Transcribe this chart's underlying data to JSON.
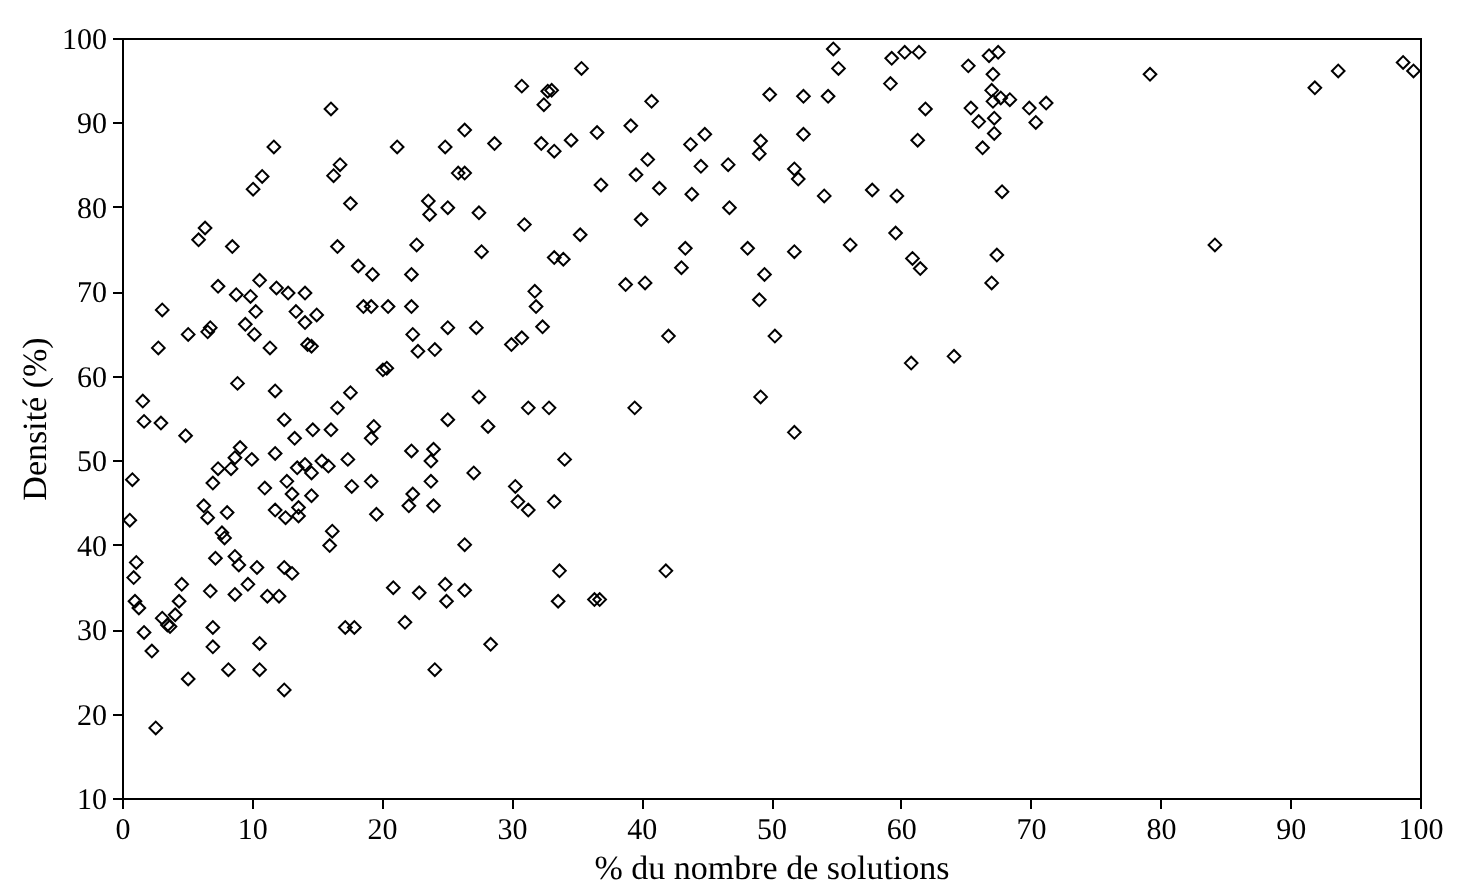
{
  "chart_data": {
    "type": "scatter",
    "xlabel": "% du nombre de solutions",
    "ylabel": "Densité (%)",
    "xlim": [
      0,
      100
    ],
    "ylim": [
      10,
      100
    ],
    "xticks": [
      0,
      10,
      20,
      30,
      40,
      50,
      60,
      70,
      80,
      90,
      100
    ],
    "yticks": [
      10,
      20,
      30,
      40,
      50,
      60,
      70,
      80,
      90,
      100
    ],
    "grid": false,
    "marker": "diamond",
    "series": [
      {
        "color": "#000000",
        "x": [
          16.1,
          11.7,
          21.2,
          24.9,
          10.8,
          10.1,
          16.8,
          16.3,
          17.6,
          23.6,
          23.7,
          25.1,
          6.4,
          5.9,
          8.5,
          16.6,
          18.2,
          19.3,
          22.7,
          22.3,
          7.4,
          8.8,
          9.9,
          10.6,
          11.9,
          12.8,
          14.1,
          3.1,
          10.3,
          13.4,
          15.0,
          14.1,
          9.5,
          10.2,
          6.8,
          6.6,
          5.1,
          2.8,
          11.4,
          14.3,
          14.6,
          18.6,
          19.2,
          20.5,
          22.3,
          22.4,
          22.8,
          24.1,
          25.1,
          20.1,
          20.4,
          8.9,
          1.6,
          1.7,
          3.0,
          4.9,
          11.8,
          12.5,
          17.6,
          16.6,
          13.3,
          14.7,
          16.1,
          19.4,
          19.2,
          25.1,
          0.8,
          0.6,
          22.3,
          24.0,
          23.8,
          23.8,
          22.4,
          22.1,
          24.0,
          9.1,
          8.7,
          7.4,
          7.0,
          8.4,
          10.0,
          6.3,
          6.6,
          8.1,
          11.8,
          11.0,
          12.7,
          13.1,
          11.8,
          12.6,
          13.6,
          13.6,
          14.6,
          13.5,
          14.1,
          14.6,
          15.4,
          15.9,
          17.4,
          17.7,
          19.2,
          19.6,
          16.2,
          16.0,
          7.7,
          7.9,
          7.2,
          8.7,
          9.0,
          9.7,
          10.4,
          8.7,
          1.1,
          0.9,
          1.0,
          1.3,
          1.7,
          2.3,
          3.1,
          3.5,
          3.7,
          4.1,
          4.4,
          4.6,
          6.8,
          7.0,
          7.0,
          11.2,
          12.1,
          12.5,
          13.1,
          20.9,
          22.9,
          24.9,
          25.0,
          21.8,
          17.2,
          17.9,
          5.1,
          8.2,
          10.6,
          10.6,
          12.5,
          24.1,
          2.6,
          30.8,
          32.8,
          32.5,
          33.1,
          35.4,
          40.8,
          26.4,
          28.7,
          32.3,
          33.3,
          34.6,
          36.6,
          39.2,
          25.9,
          26.4,
          36.9,
          39.6,
          40.5,
          41.4,
          43.8,
          44.9,
          44.6,
          46.7,
          49.2,
          49.1,
          49.9,
          27.5,
          31.0,
          40.0,
          43.9,
          46.8,
          27.7,
          35.3,
          33.3,
          34.0,
          43.4,
          43.1,
          48.2,
          49.5,
          49.1,
          38.8,
          40.3,
          31.8,
          31.9,
          32.4,
          27.3,
          30.0,
          30.8,
          42.1,
          50.3,
          27.5,
          28.2,
          31.3,
          32.9,
          39.5,
          49.2,
          34.1,
          27.1,
          30.3,
          30.5,
          31.3,
          33.3,
          26.4,
          26.4,
          33.7,
          33.6,
          36.4,
          36.8,
          41.9,
          28.4,
          54.8,
          55.2,
          59.3,
          60.3,
          61.4,
          59.2,
          52.5,
          54.4,
          65.2,
          66.8,
          67.5,
          67.1,
          67.0,
          67.1,
          67.7,
          68.4,
          67.2,
          66.3,
          67.2,
          65.4,
          66.0,
          69.9,
          70.4,
          71.2,
          61.9,
          61.3,
          52.5,
          51.8,
          52.1,
          54.1,
          57.8,
          59.7,
          67.8,
          79.2,
          91.9,
          93.7,
          98.7,
          99.5,
          51.8,
          56.1,
          59.6,
          60.9,
          61.5,
          67.4,
          67.0,
          84.2,
          60.8,
          64.1,
          51.8
        ],
        "values": [
          91.6,
          87.1,
          87.1,
          87.1,
          83.6,
          82.1,
          85.0,
          83.7,
          80.4,
          80.7,
          79.1,
          79.9,
          77.5,
          76.1,
          75.3,
          75.3,
          73.0,
          72.0,
          75.5,
          72.0,
          70.6,
          69.6,
          69.4,
          71.3,
          70.4,
          69.8,
          69.8,
          67.8,
          67.6,
          67.6,
          67.2,
          66.3,
          66.1,
          64.9,
          65.7,
          65.2,
          64.9,
          63.3,
          63.3,
          63.7,
          63.5,
          68.2,
          68.2,
          68.2,
          68.2,
          64.9,
          62.9,
          63.1,
          65.7,
          60.7,
          60.9,
          59.1,
          57.0,
          54.6,
          54.4,
          52.9,
          58.2,
          54.8,
          58.0,
          56.2,
          52.6,
          53.6,
          53.6,
          54.0,
          52.6,
          54.8,
          47.7,
          42.9,
          51.1,
          51.3,
          49.9,
          47.5,
          46.0,
          44.6,
          44.6,
          51.5,
          50.3,
          49.0,
          47.3,
          49.0,
          50.1,
          44.6,
          43.2,
          43.8,
          50.8,
          46.7,
          47.5,
          46.0,
          44.1,
          43.2,
          43.4,
          44.4,
          45.8,
          49.1,
          49.5,
          48.5,
          49.9,
          49.3,
          50.1,
          46.9,
          47.5,
          43.6,
          41.6,
          39.9,
          41.4,
          40.8,
          38.4,
          38.6,
          37.6,
          35.3,
          37.3,
          34.1,
          37.9,
          36.1,
          33.3,
          32.5,
          29.6,
          27.4,
          31.3,
          30.5,
          30.3,
          31.7,
          33.3,
          35.3,
          34.5,
          27.9,
          30.2,
          33.9,
          33.9,
          37.3,
          36.6,
          34.9,
          34.3,
          35.3,
          33.3,
          30.8,
          30.2,
          30.2,
          24.1,
          25.2,
          25.2,
          28.3,
          22.8,
          25.2,
          18.3,
          94.3,
          93.7,
          92.1,
          93.8,
          96.4,
          92.5,
          89.1,
          87.5,
          87.5,
          86.6,
          87.9,
          88.8,
          89.6,
          84.0,
          84.0,
          82.6,
          83.8,
          85.6,
          82.2,
          87.4,
          88.6,
          84.8,
          85.0,
          87.8,
          86.3,
          93.3,
          79.3,
          77.9,
          78.5,
          81.5,
          79.9,
          74.7,
          76.7,
          74.0,
          73.8,
          75.1,
          72.8,
          75.1,
          72.0,
          69.0,
          70.8,
          71.0,
          70.0,
          68.2,
          65.8,
          65.7,
          63.7,
          64.5,
          64.7,
          64.7,
          57.5,
          54.0,
          56.2,
          56.2,
          56.2,
          57.5,
          50.1,
          48.5,
          46.9,
          45.1,
          44.1,
          45.1,
          40.0,
          34.6,
          36.9,
          33.3,
          33.5,
          33.5,
          36.9,
          28.2,
          98.7,
          96.4,
          97.6,
          98.3,
          98.3,
          94.6,
          93.1,
          93.1,
          96.7,
          97.9,
          98.3,
          95.7,
          93.8,
          92.5,
          92.9,
          92.7,
          90.5,
          87.0,
          88.7,
          91.7,
          90.1,
          91.7,
          90.0,
          92.3,
          91.6,
          87.9,
          88.6,
          84.5,
          83.3,
          81.3,
          82.0,
          81.3,
          81.8,
          95.7,
          94.1,
          96.1,
          97.1,
          96.1,
          74.7,
          75.5,
          76.9,
          73.9,
          72.7,
          74.3,
          71.0,
          75.5,
          61.5,
          62.3,
          53.3
        ]
      }
    ]
  }
}
